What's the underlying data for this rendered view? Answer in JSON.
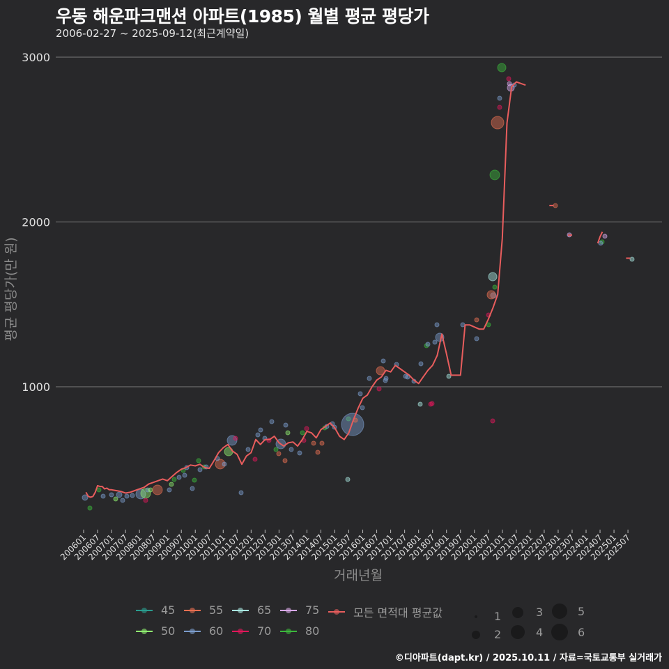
{
  "header": {
    "title": "우동 해운파크맨션 아파트(1985) 월별 평균 평당가",
    "subtitle": "2006-02-27 ~ 2025-09-12(최근계약일)"
  },
  "credit": "©디아파트(dapt.kr) / 2025.10.11 / 자료=국토교통부 실거래가",
  "legend": {
    "series": [
      {
        "label": "45",
        "color": "#2a9d8f"
      },
      {
        "label": "55",
        "color": "#e76f51"
      },
      {
        "label": "65",
        "color": "#a8e6e0"
      },
      {
        "label": "75",
        "color": "#d8a8e8"
      },
      {
        "label": "모든 면적대 평균값",
        "color": "#e85d5d"
      },
      {
        "label": "50",
        "color": "#90ee70"
      },
      {
        "label": "60",
        "color": "#7b9ccc"
      },
      {
        "label": "70",
        "color": "#e0185a"
      },
      {
        "label": "80",
        "color": "#3cb83c"
      }
    ],
    "sizes": [
      {
        "label": "1",
        "d": 4
      },
      {
        "label": "2",
        "d": 12
      },
      {
        "label": "3",
        "d": 16
      },
      {
        "label": "4",
        "d": 20
      },
      {
        "label": "5",
        "d": 22
      },
      {
        "label": "6",
        "d": 24
      }
    ]
  },
  "chart_data": {
    "type": "line",
    "title": "우동 해운파크맨션 아파트(1985) 월별 평균 평당가",
    "subtitle": "2006-02-27 ~ 2025-09-12(최근계약일)",
    "xlabel": "거래년월",
    "ylabel": "평균 평당가(만 원)",
    "ylim": [
      150,
      3100
    ],
    "yticks": [
      1000,
      2000,
      3000
    ],
    "grid": "horizontal",
    "legend_position": "bottom",
    "xticks": [
      "200601",
      "200607",
      "200701",
      "200707",
      "200801",
      "200807",
      "200901",
      "200907",
      "201001",
      "201007",
      "201101",
      "201107",
      "201201",
      "201207",
      "201301",
      "201307",
      "201401",
      "201407",
      "201501",
      "201507",
      "201601",
      "201607",
      "201701",
      "201707",
      "201801",
      "201807",
      "201901",
      "201907",
      "202001",
      "202007",
      "202101",
      "202107",
      "202201",
      "202207",
      "202301",
      "202307",
      "202401",
      "202407",
      "202501",
      "202507"
    ],
    "series": [
      {
        "name": "모든 면적대 평균값",
        "color": "#e85d5d",
        "points": [
          [
            "2006-02",
            360
          ],
          [
            "2006-03",
            335
          ],
          [
            "2006-04",
            330
          ],
          [
            "2006-05",
            335
          ],
          [
            "2006-06",
            360
          ],
          [
            "2006-07",
            400
          ],
          [
            "2006-08",
            395
          ],
          [
            "2006-09",
            395
          ],
          [
            "2006-10",
            380
          ],
          [
            "2006-11",
            385
          ],
          [
            "2006-12",
            375
          ],
          [
            "2007-01",
            375
          ],
          [
            "2007-03",
            370
          ],
          [
            "2007-05",
            365
          ],
          [
            "2007-07",
            355
          ],
          [
            "2007-09",
            360
          ],
          [
            "2007-11",
            370
          ],
          [
            "2008-01",
            380
          ],
          [
            "2008-03",
            390
          ],
          [
            "2008-05",
            410
          ],
          [
            "2008-07",
            420
          ],
          [
            "2008-09",
            430
          ],
          [
            "2008-11",
            440
          ],
          [
            "2009-01",
            430
          ],
          [
            "2009-03",
            455
          ],
          [
            "2009-05",
            480
          ],
          [
            "2009-07",
            500
          ],
          [
            "2009-09",
            510
          ],
          [
            "2009-11",
            525
          ],
          [
            "2010-01",
            520
          ],
          [
            "2010-03",
            530
          ],
          [
            "2010-05",
            510
          ],
          [
            "2010-07",
            505
          ],
          [
            "2010-09",
            550
          ],
          [
            "2010-11",
            600
          ],
          [
            "2011-01",
            630
          ],
          [
            "2011-03",
            650
          ],
          [
            "2011-05",
            610
          ],
          [
            "2011-07",
            590
          ],
          [
            "2011-09",
            530
          ],
          [
            "2011-11",
            580
          ],
          [
            "2012-01",
            600
          ],
          [
            "2012-03",
            680
          ],
          [
            "2012-05",
            650
          ],
          [
            "2012-07",
            680
          ],
          [
            "2012-09",
            680
          ],
          [
            "2012-11",
            700
          ],
          [
            "2013-01",
            660
          ],
          [
            "2013-03",
            640
          ],
          [
            "2013-05",
            660
          ],
          [
            "2013-07",
            665
          ],
          [
            "2013-09",
            640
          ],
          [
            "2013-11",
            680
          ],
          [
            "2014-01",
            730
          ],
          [
            "2014-03",
            720
          ],
          [
            "2014-05",
            690
          ],
          [
            "2014-07",
            740
          ],
          [
            "2014-09",
            760
          ],
          [
            "2014-11",
            780
          ],
          [
            "2015-01",
            750
          ],
          [
            "2015-03",
            700
          ],
          [
            "2015-05",
            680
          ],
          [
            "2015-07",
            720
          ],
          [
            "2015-09",
            800
          ],
          [
            "2015-11",
            870
          ],
          [
            "2016-01",
            930
          ],
          [
            "2016-03",
            950
          ],
          [
            "2016-05",
            1000
          ],
          [
            "2016-07",
            1040
          ],
          [
            "2016-09",
            1060
          ],
          [
            "2016-11",
            1100
          ],
          [
            "2017-01",
            1090
          ],
          [
            "2017-03",
            1130
          ],
          [
            "2017-05",
            1110
          ],
          [
            "2017-07",
            1090
          ],
          [
            "2017-09",
            1070
          ],
          [
            "2017-11",
            1040
          ],
          [
            "2018-01",
            1020
          ],
          [
            "2018-03",
            1060
          ],
          [
            "2018-05",
            1100
          ],
          [
            "2018-07",
            1130
          ],
          [
            "2018-09",
            1190
          ],
          [
            "2018-11",
            1320
          ],
          [
            "2019-01",
            1200
          ],
          [
            "2019-03",
            1070
          ],
          [
            "2019-05",
            1070
          ],
          [
            "2019-07",
            1070
          ],
          [
            "2019-09",
            1375
          ],
          [
            "2019-11",
            1375
          ],
          [
            "2020-03",
            1350
          ],
          [
            "2020-05",
            1350
          ],
          [
            "2020-07",
            1410
          ],
          [
            "2020-09",
            1480
          ],
          [
            "2020-11",
            1560
          ],
          [
            "2021-01",
            1900
          ],
          [
            "2021-03",
            2600
          ],
          [
            "2021-05",
            2820
          ],
          [
            "2021-07",
            2850
          ],
          [
            "2021-09",
            2840
          ],
          [
            "2021-11",
            2830
          ],
          [
            "2022-11",
            2100
          ],
          [
            "2023-07",
            1920
          ],
          [
            "2024-06",
            1870
          ],
          [
            "2024-07",
            1910
          ],
          [
            "2024-08",
            1940
          ],
          [
            "2025-08",
            1780
          ]
        ]
      }
    ],
    "scatter_note": "Semi-transparent circles per area group (45,50,55,60,65,70,75,80 평); size = number of transactions (1–6)."
  }
}
